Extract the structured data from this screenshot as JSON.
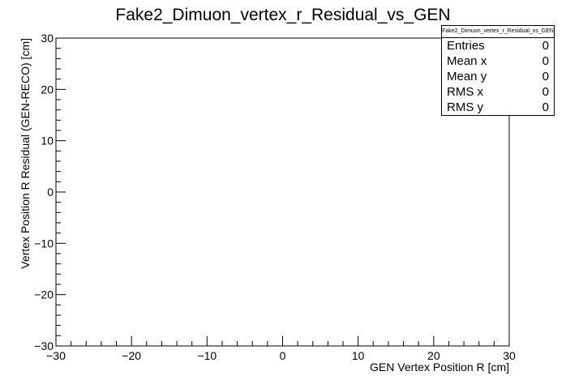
{
  "chart_data": {
    "type": "scatter",
    "title": "Fake2_Dimuon_vertex_r_Residual_vs_GEN",
    "xlabel": "GEN Vertex Position R [cm]",
    "ylabel": "Vertex Position R Residual (GEN-RECO) [cm]",
    "xlim": [
      -30,
      30
    ],
    "ylim": [
      -30,
      30
    ],
    "x_ticks": [
      "−30",
      "−20",
      "−10",
      "0",
      "10",
      "20",
      "30"
    ],
    "y_ticks": [
      "−30",
      "−20",
      "−10",
      "0",
      "10",
      "20",
      "30"
    ],
    "grid": false,
    "points": []
  },
  "stats": {
    "title": "Fake2_Dimuon_vertex_r_Residual_vs_GEN",
    "rows": [
      {
        "label": "Entries",
        "value": "0"
      },
      {
        "label": "Mean x",
        "value": "0"
      },
      {
        "label": "Mean y",
        "value": "0"
      },
      {
        "label": "RMS x",
        "value": "0"
      },
      {
        "label": "RMS y",
        "value": "0"
      }
    ]
  }
}
